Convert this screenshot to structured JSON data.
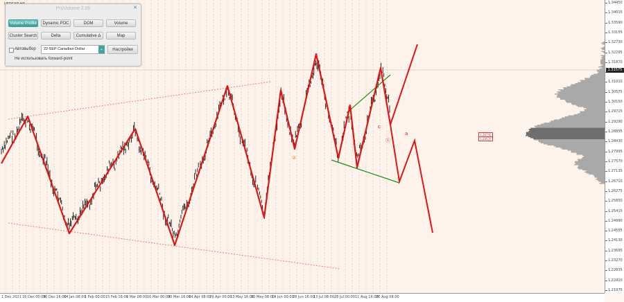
{
  "symbol": "USDCAD,H4",
  "panel": {
    "title": "ProVolume 2.05",
    "buttons": [
      {
        "label": "Volume Profile",
        "active": true
      },
      {
        "label": "Dynamic POC",
        "active": false
      },
      {
        "label": "DOM",
        "active": false
      },
      {
        "label": "Volume",
        "active": false
      },
      {
        "label": "Cluster Search",
        "active": false
      },
      {
        "label": "Delta",
        "active": false
      },
      {
        "label": "Cumulative Δ",
        "active": false
      },
      {
        "label": "Map",
        "active": false
      }
    ],
    "auto_label": "Автовыбор",
    "contract_value": "22 SEP Canadian Dollar",
    "settings_label": "Настройки",
    "forward_point_label": "Не использовать forward-point"
  },
  "price_axis": {
    "labels": [
      "1.34450",
      "1.34015",
      "1.33590",
      "1.33155",
      "1.32730",
      "1.32295",
      "1.31870",
      "1.31435",
      "1.31010",
      "1.30575",
      "1.30150",
      "1.29715",
      "1.29290",
      "1.28855",
      "1.28430",
      "1.27995",
      "1.27570",
      "1.27135",
      "1.26710",
      "1.26275",
      "1.25850",
      "1.25415",
      "1.24990",
      "1.24555",
      "1.24130",
      "1.23695",
      "1.23270",
      "1.22835",
      "1.22410",
      "1.21975"
    ],
    "current_price": "1.31575"
  },
  "time_axis": {
    "labels": [
      "1 Dec 2021",
      "16 Dec 00:00",
      "30 Dec 16:00",
      "14 Jan 08:00",
      "1 Feb 00:00",
      "15 Feb 16:00",
      "1 Mar 08:00",
      "16 Mar 00:00",
      "30 Mar 16:00",
      "14 Apr 08:00",
      "29 Apr 00:00",
      "13 May 16:00",
      "30 May 08:00",
      "14 Jun 00:00",
      "28 Jun 16:00",
      "13 Jul 08:00",
      "28 Jul 00:00",
      "11 Aug 16:00",
      "26 Aug 08:00"
    ]
  },
  "profile_levels": {
    "high": "1.28740",
    "low": "1.28570"
  },
  "wave_labels": [
    "b",
    "a",
    "c",
    "②",
    "ⓢ"
  ],
  "colors": {
    "background": "#fdf3ea",
    "wave_line": "#e01414",
    "channel_line": "#e98070",
    "triangle_line": "#1a8a1a",
    "volume_profile": "#a9a9a9",
    "panel_active": "#43a59e"
  }
}
